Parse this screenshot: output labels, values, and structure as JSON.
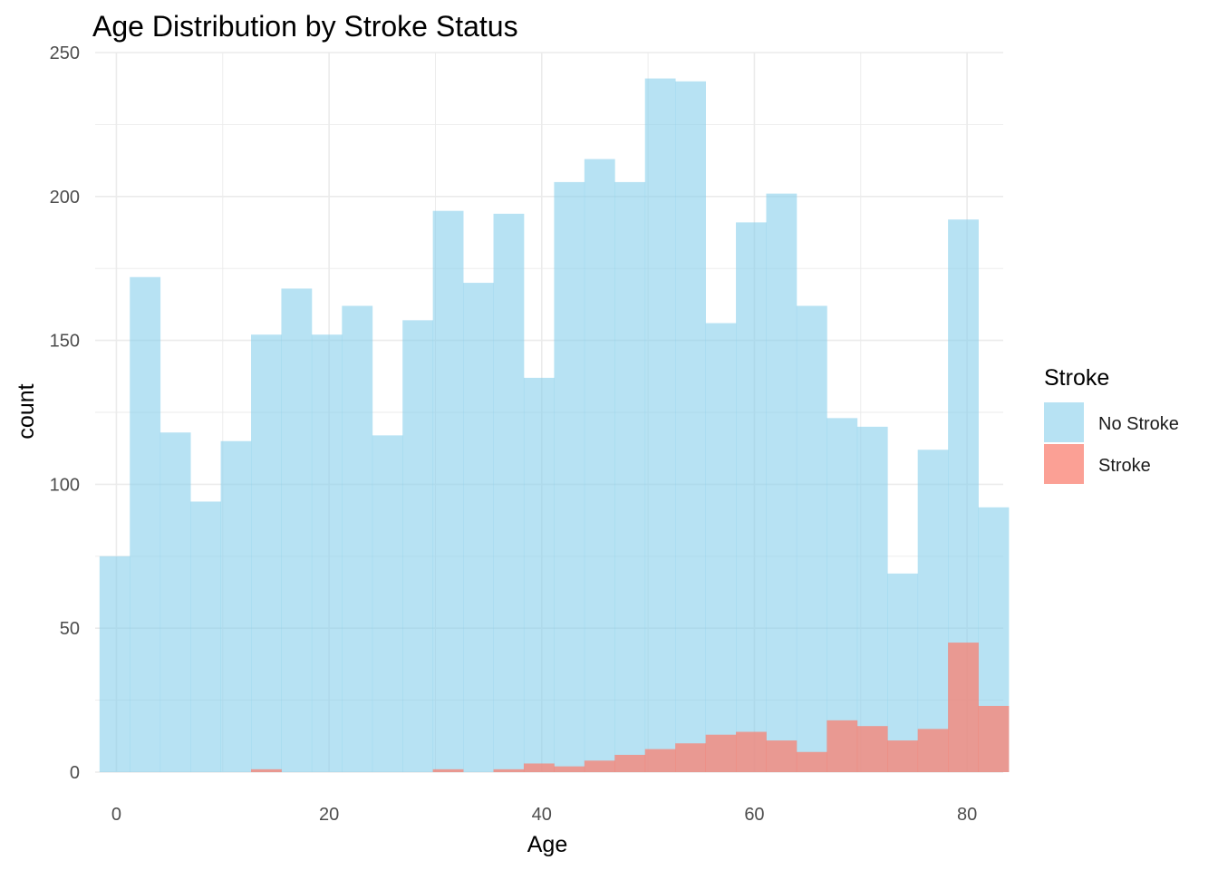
{
  "chart_data": {
    "type": "bar",
    "subtype": "overlaid-histogram",
    "title": "Age Distribution by Stroke Status",
    "xlabel": "Age",
    "ylabel": "count",
    "xlim": [
      -2,
      83.4
    ],
    "ylim": [
      0,
      250
    ],
    "x_ticks": [
      0,
      20,
      40,
      60,
      80
    ],
    "y_ticks": [
      0,
      50,
      100,
      150,
      200,
      250
    ],
    "grid": true,
    "bin_width": 2.85,
    "bin_start": -1.59,
    "legend": {
      "title": "Stroke",
      "position": "right",
      "entries": [
        {
          "label": "No Stroke",
          "color": "#87ceeb"
        },
        {
          "label": "Stroke",
          "color": "#fa8072"
        }
      ]
    },
    "series": [
      {
        "name": "No Stroke",
        "color": "#87ceeb",
        "values": [
          75,
          172,
          118,
          94,
          115,
          152,
          168,
          152,
          162,
          117,
          157,
          195,
          170,
          194,
          137,
          205,
          213,
          205,
          241,
          240,
          156,
          191,
          201,
          162,
          123,
          120,
          69,
          112,
          192,
          92
        ]
      },
      {
        "name": "Stroke",
        "color": "#fa8072",
        "values": [
          0,
          0,
          0,
          0,
          0,
          1,
          0,
          0,
          0,
          0,
          0,
          1,
          0,
          1,
          3,
          2,
          4,
          6,
          8,
          10,
          13,
          14,
          11,
          7,
          18,
          16,
          11,
          15,
          45,
          23
        ]
      }
    ]
  }
}
